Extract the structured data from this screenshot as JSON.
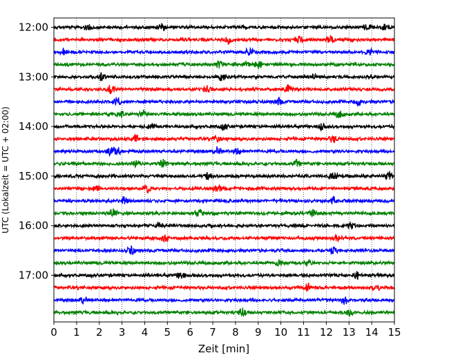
{
  "chart_data": {
    "type": "line",
    "title": "",
    "xlabel": "Zeit  [min]",
    "ylabel": "UTC (Lokalzeit = UTC + 02:00)",
    "xlim": [
      0,
      15
    ],
    "x_ticks": [
      "0",
      "1",
      "2",
      "3",
      "4",
      "5",
      "6",
      "7",
      "8",
      "9",
      "10",
      "11",
      "12",
      "13",
      "14",
      "15"
    ],
    "y_ticks": [
      "12:00",
      "13:00",
      "14:00",
      "15:00",
      "16:00",
      "17:00"
    ],
    "y_tick_rows": [
      0,
      4,
      8,
      12,
      16,
      20
    ],
    "grid": "vertical dotted lines at each minute",
    "row_interval_minutes": 15,
    "row_start": "12:00",
    "row_end": "17:45",
    "color_cycle": [
      "#000000",
      "#ff0000",
      "#0000ff",
      "#008000"
    ],
    "rows": [
      {
        "start": "12:00",
        "color": "#000000",
        "events": [
          1.5,
          4.75,
          13.8,
          14.6
        ]
      },
      {
        "start": "12:15",
        "color": "#ff0000",
        "events": [
          7.7,
          10.8,
          12.2
        ]
      },
      {
        "start": "12:30",
        "color": "#0000ff",
        "events": [
          0.45,
          8.6,
          13.9
        ]
      },
      {
        "start": "12:45",
        "color": "#008000",
        "events": [
          7.3,
          8.5,
          9.0
        ]
      },
      {
        "start": "13:00",
        "color": "#000000",
        "events": [
          2.1,
          7.4,
          11.4
        ]
      },
      {
        "start": "13:15",
        "color": "#ff0000",
        "events": [
          2.5,
          6.8,
          10.3
        ]
      },
      {
        "start": "13:30",
        "color": "#0000ff",
        "events": [
          2.8,
          9.9,
          13.4
        ]
      },
      {
        "start": "13:45",
        "color": "#008000",
        "events": [
          2.9,
          3.9,
          12.6
        ]
      },
      {
        "start": "14:00",
        "color": "#000000",
        "events": [
          4.3,
          7.5,
          11.8
        ]
      },
      {
        "start": "14:15",
        "color": "#ff0000",
        "events": [
          3.6,
          7.2,
          12.3
        ]
      },
      {
        "start": "14:30",
        "color": "#0000ff",
        "events": [
          2.5,
          2.8,
          7.2,
          8.1
        ]
      },
      {
        "start": "14:45",
        "color": "#008000",
        "events": [
          3.6,
          4.8,
          10.7
        ]
      },
      {
        "start": "15:00",
        "color": "#000000",
        "events": [
          6.8,
          12.3,
          14.8
        ]
      },
      {
        "start": "15:15",
        "color": "#ff0000",
        "events": [
          1.85,
          4.1,
          7.2
        ]
      },
      {
        "start": "15:30",
        "color": "#0000ff",
        "events": [
          3.1,
          12.3
        ]
      },
      {
        "start": "15:45",
        "color": "#008000",
        "events": [
          2.6,
          6.4,
          11.4
        ]
      },
      {
        "start": "16:00",
        "color": "#000000",
        "events": [
          4.6,
          13.1
        ]
      },
      {
        "start": "16:15",
        "color": "#ff0000",
        "events": [
          4.9,
          12.5
        ]
      },
      {
        "start": "16:30",
        "color": "#0000ff",
        "events": [
          3.4,
          12.3
        ]
      },
      {
        "start": "16:45",
        "color": "#008000",
        "events": [
          9.9,
          11.2
        ]
      },
      {
        "start": "17:00",
        "color": "#000000",
        "events": [
          5.6,
          13.4
        ]
      },
      {
        "start": "17:15",
        "color": "#ff0000",
        "events": [
          11.2,
          14.2
        ]
      },
      {
        "start": "17:30",
        "color": "#0000ff",
        "events": [
          1.3,
          12.8
        ]
      },
      {
        "start": "17:45",
        "color": "#008000",
        "events": [
          8.3,
          13.0
        ]
      }
    ]
  }
}
